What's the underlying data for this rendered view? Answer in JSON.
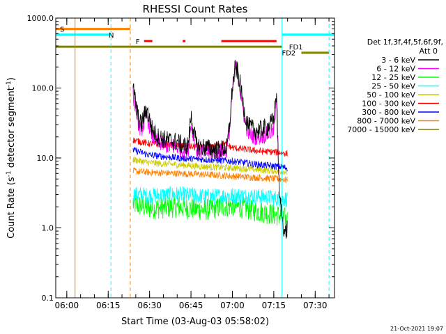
{
  "chart_data": {
    "type": "line",
    "title": "RHESSI Count Rates",
    "xlabel": "Start Time (03-Aug-03 05:58:02)",
    "ylabel": "Count Rate (s⁻¹ detector segment⁻¹)",
    "ylabel_parts": {
      "main": "Count Rate (s",
      "sup1": "-1",
      "mid": " detector segment",
      "sup2": "-1",
      "end": ")"
    },
    "y_scale": "log",
    "ylim": [
      0.1,
      1000
    ],
    "xlim": [
      "05:56",
      "07:37"
    ],
    "y_ticks": [
      "0.1",
      "1.0",
      "10.0",
      "100.0",
      "1000.0"
    ],
    "x_ticks": [
      "06:00",
      "06:15",
      "06:30",
      "06:45",
      "07:00",
      "07:15",
      "07:30"
    ],
    "legend": {
      "title": "Det 1f,3f,4f,5f,6f,9f,",
      "subtitle": "Att 0",
      "position": "right",
      "entries": [
        {
          "label": "3 - 6 keV",
          "color": "#000000"
        },
        {
          "label": "6 - 12 keV",
          "color": "#ff00ff"
        },
        {
          "label": "12 - 25 keV",
          "color": "#00ff00"
        },
        {
          "label": "25 - 50 keV",
          "color": "#00ffff"
        },
        {
          "label": "50 - 100 keV",
          "color": "#cccc00"
        },
        {
          "label": "100 - 300 keV",
          "color": "#ff0000"
        },
        {
          "label": "300 - 800 keV",
          "color": "#0000ff"
        },
        {
          "label": "800 - 7000 keV",
          "color": "#ff8000"
        },
        {
          "label": "7000 - 15000 keV",
          "color": "#808000"
        }
      ]
    },
    "series": [
      {
        "name": "3 - 6 keV",
        "color": "#000000",
        "x": [
          "06:24",
          "06:25",
          "06:26",
          "06:27",
          "06:28",
          "06:29",
          "06:30",
          "06:31",
          "06:33",
          "06:36",
          "06:40",
          "06:42",
          "06:44",
          "06:45",
          "06:47",
          "06:50",
          "06:55",
          "06:58",
          "06:59",
          "07:00",
          "07:01",
          "07:02",
          "07:03",
          "07:04",
          "07:05",
          "07:06",
          "07:08",
          "07:10",
          "07:13",
          "07:15",
          "07:16",
          "07:17",
          "07:18",
          "07:19",
          "07:20"
        ],
        "y": [
          100,
          60,
          35,
          30,
          40,
          50,
          35,
          25,
          20,
          18,
          17,
          15,
          15,
          40,
          15,
          14,
          13,
          14,
          30,
          100,
          190,
          170,
          100,
          55,
          35,
          28,
          25,
          25,
          28,
          35,
          90,
          3,
          1.5,
          0.8,
          1.0
        ]
      },
      {
        "name": "6 - 12 keV",
        "color": "#ff00ff",
        "x": [
          "06:24",
          "06:25",
          "06:26",
          "06:27",
          "06:28",
          "06:29",
          "06:30",
          "06:31",
          "06:33",
          "06:36",
          "06:40",
          "06:42",
          "06:44",
          "06:45",
          "06:47",
          "06:50",
          "06:55",
          "06:58",
          "06:59",
          "07:00",
          "07:01",
          "07:02",
          "07:03",
          "07:04",
          "07:05",
          "07:06",
          "07:08",
          "07:10",
          "07:13",
          "07:15",
          "07:16",
          "07:17"
        ],
        "y": [
          80,
          50,
          30,
          25,
          32,
          40,
          28,
          20,
          17,
          15,
          14,
          13,
          13,
          30,
          13,
          12,
          12,
          13,
          25,
          90,
          200,
          150,
          85,
          45,
          28,
          22,
          20,
          20,
          22,
          25,
          70,
          4
        ]
      },
      {
        "name": "12 - 25 keV",
        "color": "#00ff00",
        "x": [
          "06:24",
          "06:30",
          "06:40",
          "06:50",
          "07:00",
          "07:10",
          "07:17",
          "07:20"
        ],
        "y": [
          2.2,
          1.9,
          2.0,
          1.8,
          2.1,
          1.7,
          1.5,
          1.3
        ]
      },
      {
        "name": "25 - 50 keV",
        "color": "#00ffff",
        "x": [
          "06:24",
          "06:30",
          "06:40",
          "06:50",
          "07:00",
          "07:10",
          "07:17",
          "07:20"
        ],
        "y": [
          3.0,
          2.9,
          3.0,
          2.8,
          2.9,
          2.8,
          2.6,
          2.6
        ]
      },
      {
        "name": "50 - 100 keV",
        "color": "#cccc00",
        "x": [
          "06:24",
          "06:30",
          "06:40",
          "06:50",
          "07:00",
          "07:10",
          "07:17",
          "07:20"
        ],
        "y": [
          9.5,
          8.5,
          8.0,
          7.5,
          7.2,
          6.8,
          6.5,
          6.3
        ]
      },
      {
        "name": "100 - 300 keV",
        "color": "#ff0000",
        "x": [
          "06:24",
          "06:30",
          "06:40",
          "06:50",
          "06:57",
          "07:00",
          "07:10",
          "07:17",
          "07:20"
        ],
        "y": [
          18,
          16,
          15,
          14,
          16,
          14,
          12.5,
          12,
          11.5
        ]
      },
      {
        "name": "300 - 800 keV",
        "color": "#0000ff",
        "x": [
          "06:24",
          "06:30",
          "06:40",
          "06:50",
          "07:00",
          "07:10",
          "07:17",
          "07:20"
        ],
        "y": [
          13,
          11,
          10,
          9.5,
          9,
          8,
          7.5,
          7.2
        ]
      },
      {
        "name": "800 - 7000 keV",
        "color": "#ff8000",
        "x": [
          "06:24",
          "06:30",
          "06:40",
          "06:50",
          "07:00",
          "07:10",
          "07:17",
          "07:20"
        ],
        "y": [
          6.5,
          6.2,
          6.0,
          5.8,
          5.5,
          5.2,
          5.0,
          4.8
        ]
      }
    ],
    "flag_bars": [
      {
        "label": "S",
        "color": "#ff8000",
        "y": 700,
        "segments": [
          [
            "05:56",
            "06:23"
          ]
        ]
      },
      {
        "label": "N",
        "color": "#00ffff",
        "y": 580,
        "segments": [
          [
            "05:56",
            "06:16"
          ]
        ]
      },
      {
        "label": "F",
        "color": "#ff0000",
        "y": 470,
        "segments": [
          [
            "06:28",
            "06:31"
          ],
          [
            "06:42",
            "06:43"
          ],
          [
            "06:56",
            "07:16"
          ]
        ]
      },
      {
        "label": "FD1",
        "color": "#808000",
        "y": 390,
        "segments": [
          [
            "05:56",
            "07:18"
          ]
        ]
      },
      {
        "label": "FD2",
        "color": "#808000",
        "y": 320,
        "segments": [
          [
            "07:25",
            "07:35"
          ]
        ]
      },
      {
        "label": "",
        "color": "#00ffff",
        "y": 580,
        "segments": [
          [
            "07:18",
            "07:37"
          ]
        ]
      }
    ],
    "vertical_markers": [
      {
        "x": "05:56",
        "color": "#00ffff",
        "style": "solid"
      },
      {
        "x": "06:03",
        "color": "#ff8000",
        "style": "solid"
      },
      {
        "x": "06:16",
        "color": "#00ffff",
        "style": "dashed"
      },
      {
        "x": "06:23",
        "color": "#ff8000",
        "style": "dashed"
      },
      {
        "x": "07:18",
        "color": "#00ffff",
        "style": "solid"
      },
      {
        "x": "07:35",
        "color": "#00ffff",
        "style": "dashed"
      }
    ],
    "footer_date": "21-Oct-2021 19:07"
  }
}
